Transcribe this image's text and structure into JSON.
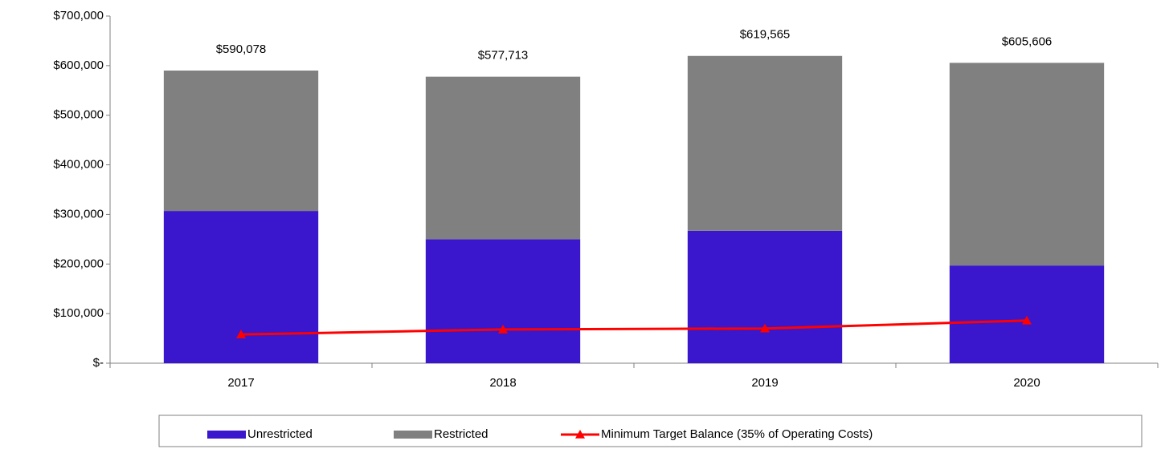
{
  "chart_data": {
    "type": "stacked-bar-line",
    "categories": [
      "2017",
      "2018",
      "2019",
      "2020"
    ],
    "series": [
      {
        "name": "Unrestricted",
        "color": "#3a17cc",
        "kind": "bar",
        "values": [
          307000,
          250000,
          267000,
          197000
        ]
      },
      {
        "name": "Restricted",
        "color": "#808080",
        "kind": "bar",
        "values": [
          283078,
          327713,
          352565,
          408606
        ]
      },
      {
        "name": "Minimum Target Balance (35% of Operating Costs)",
        "color": "#ff0000",
        "kind": "line",
        "marker": "triangle",
        "values": [
          58000,
          68000,
          70000,
          86000
        ]
      }
    ],
    "totals": [
      590078,
      577713,
      619565,
      605606
    ],
    "total_labels": [
      "$590,078",
      "$577,713",
      "$619,565",
      "$605,606"
    ],
    "ylim": [
      0,
      700000
    ],
    "yticks": [
      {
        "value": 0,
        "label": "$-"
      },
      {
        "value": 100000,
        "label": "$100,000"
      },
      {
        "value": 200000,
        "label": "$200,000"
      },
      {
        "value": 300000,
        "label": "$300,000"
      },
      {
        "value": 400000,
        "label": "$400,000"
      },
      {
        "value": 500000,
        "label": "$500,000"
      },
      {
        "value": 600000,
        "label": "$600,000"
      },
      {
        "value": 700000,
        "label": "$700,000"
      }
    ],
    "grid": false,
    "legend": "bottom"
  }
}
